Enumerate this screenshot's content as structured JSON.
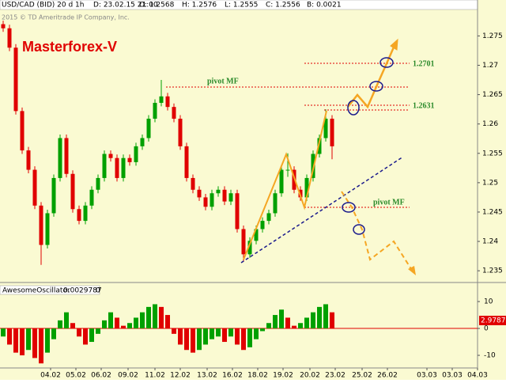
{
  "chart_data": [
    {
      "type": "candlestick",
      "title": "Masterforex-V",
      "header_fields": [
        "USD/CAD (BID) 20 d 1h",
        "D: 23.02.15 21:00",
        "O: 1.2568",
        "H: 1.2576",
        "L: 1.2555",
        "C: 1.2556",
        "B: 0.0021"
      ],
      "watermark": "2015 © TD Ameritrade IP Company, Inc.",
      "annotations": [
        "pivot MF",
        "1.2701",
        "1.2631",
        "pivot MF"
      ],
      "x": [
        1,
        3,
        5,
        7,
        9,
        11,
        13,
        15,
        17,
        19,
        21,
        23,
        25,
        27,
        29,
        31,
        33,
        35,
        37,
        39,
        41,
        43,
        45,
        47,
        49,
        51,
        53,
        55,
        57,
        59,
        61,
        63,
        65,
        67,
        69,
        71,
        73,
        75,
        77,
        79,
        81,
        83,
        85,
        87,
        89,
        91,
        93,
        95,
        97,
        99,
        101,
        103,
        105
      ],
      "open": [
        1.277,
        1.2763,
        1.273,
        1.2622,
        1.2555,
        1.2522,
        1.2461,
        1.2394,
        1.2448,
        1.2508,
        1.2576,
        1.2515,
        1.2455,
        1.2435,
        1.2461,
        1.2488,
        1.2508,
        1.2549,
        1.2542,
        1.2508,
        1.2542,
        1.2535,
        1.2562,
        1.2576,
        1.2609,
        1.2636,
        1.2647,
        1.2629,
        1.2609,
        1.2562,
        1.2508,
        1.2488,
        1.2475,
        1.2459,
        1.2482,
        1.2488,
        1.2468,
        1.2482,
        1.2421,
        1.2378,
        1.2401,
        1.2421,
        1.2435,
        1.2448,
        1.2482,
        1.2522,
        1.2522,
        1.2488,
        1.2475,
        1.2508,
        1.2549,
        1.2576,
        1.2609
      ],
      "high": [
        1.2776,
        1.2769,
        1.2736,
        1.2628,
        1.2561,
        1.2528,
        1.2467,
        1.2454,
        1.2514,
        1.2582,
        1.2582,
        1.2521,
        1.2461,
        1.2467,
        1.2494,
        1.2514,
        1.2555,
        1.2555,
        1.2548,
        1.2548,
        1.2548,
        1.2568,
        1.2582,
        1.2615,
        1.2642,
        1.2675,
        1.2653,
        1.2635,
        1.2615,
        1.2568,
        1.2514,
        1.2494,
        1.2481,
        1.2488,
        1.2494,
        1.2494,
        1.2488,
        1.2488,
        1.2427,
        1.2407,
        1.2427,
        1.2441,
        1.2454,
        1.2488,
        1.2528,
        1.255,
        1.2528,
        1.2494,
        1.2514,
        1.2555,
        1.2582,
        1.2625,
        1.2615
      ],
      "low": [
        1.2757,
        1.2724,
        1.2616,
        1.2549,
        1.2516,
        1.2455,
        1.236,
        1.2388,
        1.2442,
        1.2502,
        1.2509,
        1.2449,
        1.2429,
        1.2429,
        1.2455,
        1.2482,
        1.2502,
        1.2536,
        1.2502,
        1.2502,
        1.2529,
        1.2529,
        1.2556,
        1.257,
        1.2603,
        1.263,
        1.2623,
        1.2603,
        1.2556,
        1.2502,
        1.2482,
        1.2469,
        1.2453,
        1.2453,
        1.2476,
        1.2462,
        1.2462,
        1.2415,
        1.2365,
        1.2372,
        1.2395,
        1.2415,
        1.2429,
        1.2442,
        1.2476,
        1.251,
        1.2482,
        1.2469,
        1.2469,
        1.2502,
        1.2543,
        1.257,
        1.254
      ],
      "close": [
        1.2763,
        1.273,
        1.2622,
        1.2555,
        1.2522,
        1.2461,
        1.2394,
        1.2448,
        1.2508,
        1.2576,
        1.2515,
        1.2455,
        1.2435,
        1.2461,
        1.2488,
        1.2508,
        1.2549,
        1.2542,
        1.2508,
        1.2542,
        1.2535,
        1.2562,
        1.2576,
        1.2609,
        1.2636,
        1.2647,
        1.2629,
        1.2609,
        1.2562,
        1.2508,
        1.2488,
        1.2475,
        1.2459,
        1.2482,
        1.2488,
        1.2468,
        1.2482,
        1.2421,
        1.2378,
        1.2401,
        1.2421,
        1.2435,
        1.2448,
        1.2482,
        1.2522,
        1.2522,
        1.2488,
        1.2475,
        1.2508,
        1.2549,
        1.2576,
        1.2609,
        1.2562
      ],
      "up_color": "#00a000",
      "down_color": "#e00000",
      "xlim": [
        0,
        151
      ],
      "ylim": [
        1.233,
        1.2795
      ],
      "yticks": [
        1.235,
        1.24,
        1.245,
        1.25,
        1.255,
        1.26,
        1.265,
        1.27,
        1.275
      ]
    },
    {
      "type": "histogram",
      "title": "AwesomeOscillator",
      "header_fields": [
        "0.0029787",
        "0"
      ],
      "annotations": [
        "2.97871"
      ],
      "x": [
        1,
        3,
        5,
        7,
        9,
        11,
        13,
        15,
        17,
        19,
        21,
        23,
        25,
        27,
        29,
        31,
        33,
        35,
        37,
        39,
        41,
        43,
        45,
        47,
        49,
        51,
        53,
        55,
        57,
        59,
        61,
        63,
        65,
        67,
        69,
        71,
        73,
        75,
        77,
        79,
        81,
        83,
        85,
        87,
        89,
        91,
        93,
        95,
        97,
        99,
        101,
        103,
        105
      ],
      "values": [
        -3,
        -6,
        -9,
        -10,
        -8,
        -11,
        -13,
        -9,
        -4,
        3,
        6,
        2,
        -3,
        -6,
        -5,
        -2,
        3,
        6,
        4,
        1,
        2,
        4,
        6,
        8,
        9,
        8,
        5,
        -2,
        -6,
        -8,
        -9,
        -8,
        -6,
        -4,
        -3,
        -5,
        -3,
        -6,
        -8,
        -7,
        -4,
        -1,
        2,
        5,
        7,
        4,
        1,
        2,
        4,
        6,
        8,
        9,
        6
      ],
      "up_color": "#00a000",
      "down_color": "#e00000",
      "zero_line_color": "#e00000",
      "xlim": [
        0,
        151
      ],
      "ylim": [
        -14.7,
        16.2
      ],
      "yticks": [
        -10,
        0,
        10
      ],
      "xticks": [
        {
          "value": 16,
          "label": "04.02"
        },
        {
          "value": 24,
          "label": "05.02"
        },
        {
          "value": 32,
          "label": "06.02"
        },
        {
          "value": 40.5,
          "label": "09.02"
        },
        {
          "value": 49,
          "label": "11.02"
        },
        {
          "value": 57,
          "label": "12.02"
        },
        {
          "value": 65.5,
          "label": "13.02"
        },
        {
          "value": 73.5,
          "label": "16.02"
        },
        {
          "value": 81.5,
          "label": "18.02"
        },
        {
          "value": 89.5,
          "label": "19.02"
        },
        {
          "value": 98,
          "label": "20.02"
        },
        {
          "value": 106,
          "label": "23.02"
        },
        {
          "value": 114.5,
          "label": "25.02"
        },
        {
          "value": 122.5,
          "label": "26.02"
        },
        {
          "value": 135,
          "label": "03.03"
        },
        {
          "value": 143,
          "label": "03.03"
        },
        {
          "value": 151,
          "label": "04.03"
        }
      ]
    }
  ]
}
